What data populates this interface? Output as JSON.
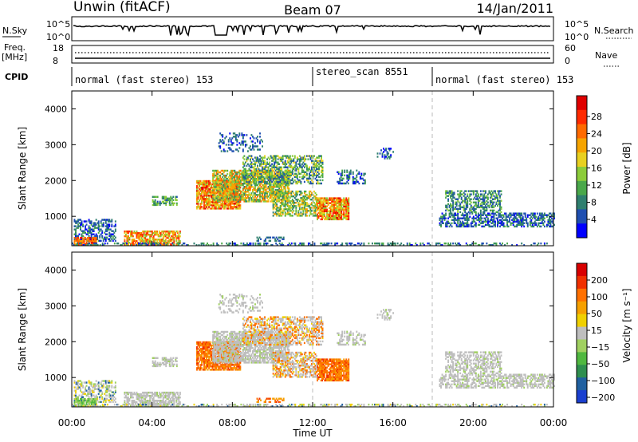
{
  "header": {
    "station": "Unwin (fitACF)",
    "beam": "Beam 07",
    "date": "14/Jan/2011"
  },
  "strips": {
    "nsky_label": "N.Sky",
    "nsky_ticks": [
      "10^5",
      "10^0"
    ],
    "nsearch_label": "N.Search",
    "freq_label": "Freq.",
    "freq_unit": "[MHz]",
    "freq_ticks": [
      18,
      8
    ],
    "nave_label": "Nave",
    "nave_ticks": [
      60,
      0
    ],
    "cpid_label": "CPID",
    "cpid_segments": [
      {
        "label": "normal (fast stereo) 153",
        "start_hour": 0
      },
      {
        "label": "stereo_scan 8551",
        "start_hour": 12
      },
      {
        "label": "normal (fast stereo) 153",
        "start_hour": 18
      }
    ]
  },
  "chart_data": [
    {
      "type": "heatmap",
      "name": "power",
      "ylabel": "Slant Range [km]",
      "ylim": [
        180,
        4500
      ],
      "yticks": [
        1000,
        2000,
        3000,
        4000
      ],
      "xlim": [
        0,
        24
      ],
      "colorbar": {
        "label": "Power [dB]",
        "ticks": [
          4,
          8,
          12,
          16,
          20,
          24,
          28
        ],
        "colors": [
          "#0000ff",
          "#1f4fb0",
          "#2f7f6f",
          "#4aa84a",
          "#8ccc3a",
          "#e8d020",
          "#f6a400",
          "#ff6a00",
          "#ff2a00",
          "#e00000"
        ]
      }
    },
    {
      "type": "heatmap",
      "name": "velocity",
      "ylabel": "Slant Range [km]",
      "ylim": [
        180,
        4500
      ],
      "yticks": [
        1000,
        2000,
        3000,
        4000
      ],
      "xlim": [
        0,
        24
      ],
      "colorbar": {
        "label": "Velocity [m s⁻¹]",
        "ticks": [
          "200",
          "100",
          "50",
          "15",
          "−15",
          "−50",
          "−100",
          "−200"
        ],
        "colors": [
          "#1a3fcf",
          "#2060a0",
          "#2f8f4f",
          "#50b840",
          "#a0d060",
          "#bebebe",
          "#f0d000",
          "#f6a000",
          "#ff7000",
          "#f03000",
          "#d80000"
        ]
      }
    }
  ],
  "xaxis": {
    "ticks": [
      "00:00",
      "04:00",
      "08:00",
      "12:00",
      "16:00",
      "20:00",
      "00:00"
    ],
    "label": "Time UT"
  }
}
